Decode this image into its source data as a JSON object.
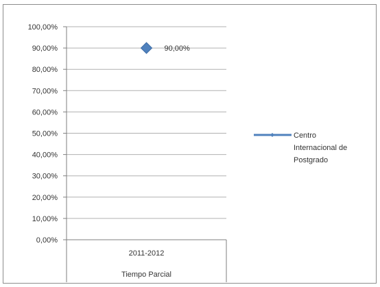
{
  "chart_data": {
    "type": "line",
    "categories": [
      {
        "label_top": "2011-2012",
        "label_bottom": "Tiempo Parcial"
      }
    ],
    "series": [
      {
        "name": "Centro Internacional de Postgrado",
        "name_lines": [
          "Centro",
          "Internacional de",
          "Postgrado"
        ],
        "values": [
          0.9
        ],
        "data_labels": [
          "90,00%"
        ],
        "color": "#4f81bd",
        "marker": "diamond"
      }
    ],
    "ylim": [
      0,
      1.0
    ],
    "yticks": [
      0,
      0.1,
      0.2,
      0.3,
      0.4,
      0.5,
      0.6,
      0.7,
      0.8,
      0.9,
      1.0
    ],
    "ytick_labels": [
      "0,00%",
      "10,00%",
      "20,00%",
      "30,00%",
      "40,00%",
      "50,00%",
      "60,00%",
      "70,00%",
      "80,00%",
      "90,00%",
      "100,00%"
    ],
    "grid": true,
    "legend": "right",
    "colors": {
      "grid": "#b0b0b0",
      "axis": "#7f7f7f",
      "text": "#333333",
      "frame": "#8c8c8c"
    }
  }
}
